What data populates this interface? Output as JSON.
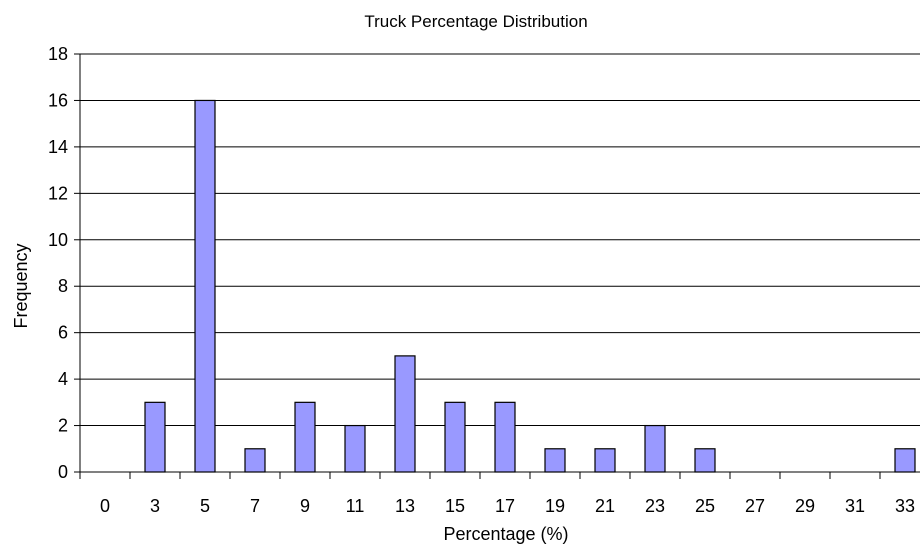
{
  "chart_data": {
    "type": "bar",
    "title": "Truck Percentage Distribution",
    "xlabel": "Percentage (%)",
    "ylabel": "Frequency",
    "categories": [
      "0",
      "3",
      "5",
      "7",
      "9",
      "11",
      "13",
      "15",
      "17",
      "19",
      "21",
      "23",
      "25",
      "27",
      "29",
      "31",
      "33"
    ],
    "values": [
      0,
      3,
      16,
      1,
      3,
      2,
      5,
      3,
      3,
      1,
      1,
      2,
      1,
      0,
      0,
      0,
      1
    ],
    "ylim": [
      0,
      18
    ],
    "yticks": [
      "0",
      "2",
      "4",
      "6",
      "8",
      "10",
      "12",
      "14",
      "16",
      "18"
    ],
    "grid": "horizontal",
    "bar_color": "#9999ff",
    "bar_edge_color": "#000000"
  }
}
